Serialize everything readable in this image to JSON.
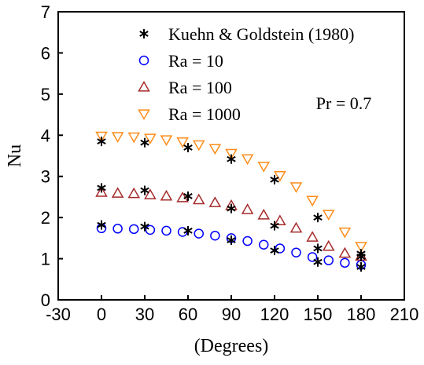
{
  "chart_data": {
    "type": "scatter",
    "xlabel": "(Degrees)",
    "ylabel": "Nu",
    "xlim": [
      -30,
      210
    ],
    "ylim": [
      0,
      7
    ],
    "xticks": [
      -30,
      0,
      30,
      60,
      90,
      120,
      150,
      180,
      210
    ],
    "yticks": [
      0,
      1,
      2,
      3,
      4,
      5,
      6,
      7
    ],
    "annotation": "Pr = 0.7",
    "legend_position": "top-right",
    "series": [
      {
        "name": "Kuehn & Goldstein (1980)",
        "marker": "asterisk",
        "color": "#000000",
        "points": [
          [
            0,
            1.82
          ],
          [
            30,
            1.78
          ],
          [
            60,
            1.68
          ],
          [
            90,
            1.45
          ],
          [
            120,
            1.2
          ],
          [
            150,
            0.92
          ],
          [
            180,
            0.8
          ],
          [
            0,
            2.72
          ],
          [
            30,
            2.66
          ],
          [
            60,
            2.52
          ],
          [
            90,
            2.22
          ],
          [
            120,
            1.8
          ],
          [
            150,
            1.25
          ],
          [
            180,
            1.05
          ],
          [
            0,
            3.85
          ],
          [
            30,
            3.82
          ],
          [
            60,
            3.7
          ],
          [
            90,
            3.42
          ],
          [
            120,
            2.92
          ],
          [
            150,
            2.0
          ],
          [
            180,
            1.12
          ]
        ]
      },
      {
        "name": "Ra = 10",
        "marker": "circle",
        "color": "#0000ff",
        "points": [
          [
            0,
            1.74
          ],
          [
            11.25,
            1.73
          ],
          [
            22.5,
            1.72
          ],
          [
            33.75,
            1.7
          ],
          [
            45,
            1.68
          ],
          [
            56.25,
            1.65
          ],
          [
            67.5,
            1.61
          ],
          [
            78.75,
            1.56
          ],
          [
            90,
            1.5
          ],
          [
            101.25,
            1.43
          ],
          [
            112.5,
            1.34
          ],
          [
            123.75,
            1.25
          ],
          [
            135,
            1.15
          ],
          [
            146.25,
            1.04
          ],
          [
            157.5,
            0.96
          ],
          [
            168.75,
            0.9
          ],
          [
            180,
            0.85
          ]
        ]
      },
      {
        "name": "Ra = 100",
        "marker": "triangle-up",
        "color": "#a52a2a",
        "points": [
          [
            0,
            2.61
          ],
          [
            11.25,
            2.59
          ],
          [
            22.5,
            2.58
          ],
          [
            33.75,
            2.55
          ],
          [
            45,
            2.52
          ],
          [
            56.25,
            2.48
          ],
          [
            67.5,
            2.43
          ],
          [
            78.75,
            2.36
          ],
          [
            90,
            2.29
          ],
          [
            101.25,
            2.19
          ],
          [
            112.5,
            2.06
          ],
          [
            123.75,
            1.92
          ],
          [
            135,
            1.74
          ],
          [
            146.25,
            1.52
          ],
          [
            157.5,
            1.3
          ],
          [
            168.75,
            1.13
          ],
          [
            180,
            1.06
          ]
        ]
      },
      {
        "name": "Ra = 1000",
        "marker": "triangle-down",
        "color": "#ff8c1a",
        "points": [
          [
            0,
            3.98
          ],
          [
            11.25,
            3.97
          ],
          [
            22.5,
            3.96
          ],
          [
            33.75,
            3.93
          ],
          [
            45,
            3.89
          ],
          [
            56.25,
            3.84
          ],
          [
            67.5,
            3.77
          ],
          [
            78.75,
            3.68
          ],
          [
            90,
            3.56
          ],
          [
            101.25,
            3.43
          ],
          [
            112.5,
            3.25
          ],
          [
            123.75,
            3.02
          ],
          [
            135,
            2.75
          ],
          [
            146.25,
            2.42
          ],
          [
            157.5,
            2.08
          ],
          [
            168.75,
            1.65
          ],
          [
            180,
            1.3
          ]
        ]
      }
    ]
  }
}
